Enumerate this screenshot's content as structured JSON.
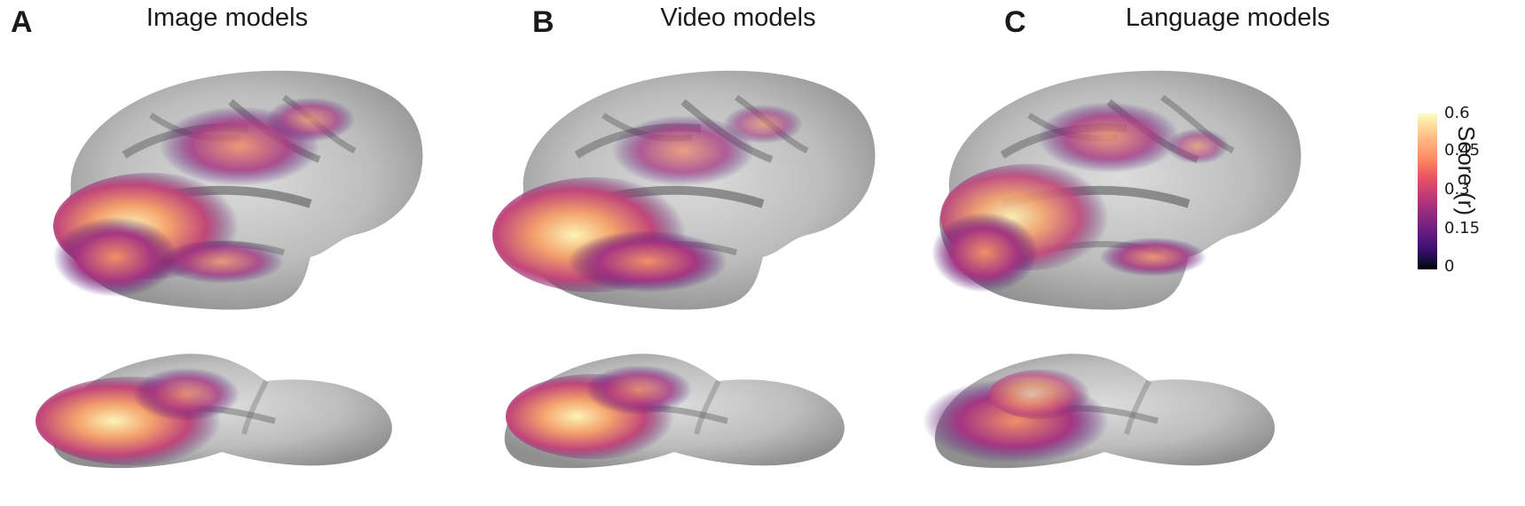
{
  "panels": [
    {
      "letter": "A",
      "title": "Image models"
    },
    {
      "letter": "B",
      "title": "Video models"
    },
    {
      "letter": "C",
      "title": "Language models"
    }
  ],
  "colorbar": {
    "title": "Score (r)",
    "ticks": [
      "0.6",
      "0.45",
      "0.3",
      "0.15",
      "0"
    ],
    "colormap": "magma",
    "colors": [
      "#000004",
      "#3b0f70",
      "#8c2981",
      "#de4968",
      "#fe9f6d",
      "#fcfdbf"
    ]
  }
}
